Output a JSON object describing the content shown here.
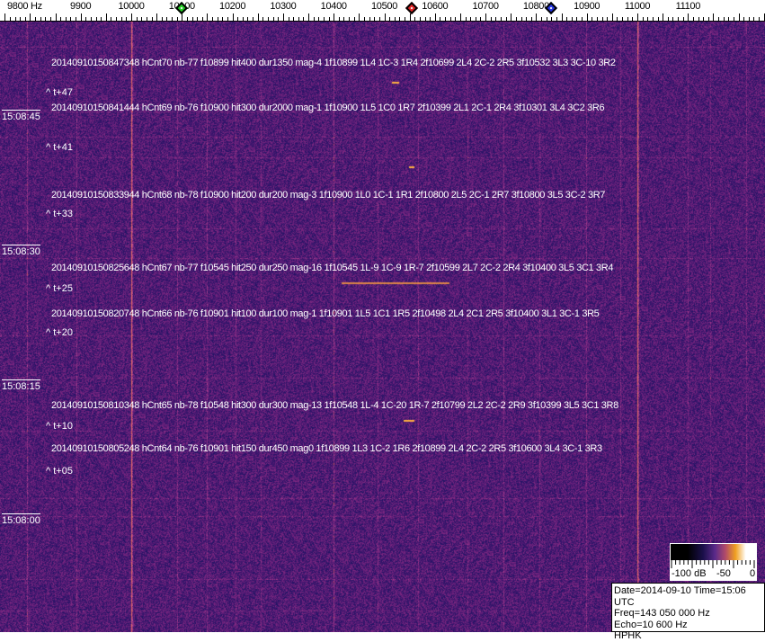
{
  "frequency_axis": {
    "labels": [
      {
        "freq": 9800,
        "text": "9800 Hz"
      },
      {
        "freq": 9900,
        "text": "9900"
      },
      {
        "freq": 10000,
        "text": "10000"
      },
      {
        "freq": 10100,
        "text": "10100"
      },
      {
        "freq": 10200,
        "text": "10200"
      },
      {
        "freq": 10300,
        "text": "10300"
      },
      {
        "freq": 10400,
        "text": "10400"
      },
      {
        "freq": 10500,
        "text": "10500"
      },
      {
        "freq": 10600,
        "text": "10600"
      },
      {
        "freq": 10700,
        "text": "10700"
      },
      {
        "freq": 10800,
        "text": "10800"
      },
      {
        "freq": 10900,
        "text": "10900"
      },
      {
        "freq": 11000,
        "text": "11000"
      },
      {
        "freq": 11100,
        "text": "11100"
      }
    ],
    "markers": [
      {
        "name": "green-marker",
        "freq": 10100,
        "color": "#22cc22"
      },
      {
        "name": "red-marker",
        "freq": 10555,
        "color": "#dd2222"
      },
      {
        "name": "blue-marker",
        "freq": 10830,
        "color": "#2233dd"
      }
    ]
  },
  "detections": [
    "20140910150847348 hCnt70 nb-77 f10899 hit400 dur1350 mag-4 1f10899 1L4 1C-3 1R4 2f10699 2L4 2C-2 2R5 3f10532 3L3 3C-10 3R2",
    "20140910150841444 hCnt69 nb-76 f10900 hit300 dur2000 mag-1 1f10900 1L5 1C0 1R7 2f10399 2L1 2C-1 2R4 3f10301 3L4 3C2 3R6",
    "20140910150833944 hCnt68 nb-78 f10900 hit200 dur200 mag-3 1f10900 1L0 1C-1 1R1 2f10800 2L5 2C-1 2R7 3f10800 3L5 3C-2 3R7",
    "20140910150825648 hCnt67 nb-77 f10545 hit250 dur250 mag-16 1f10545 1L-9 1C-9 1R-7 2f10599 2L7 2C-2 2R4 3f10400 3L5 3C1 3R4",
    "20140910150820748 hCnt66 nb-76 f10901 hit100 dur100 mag-1 1f10901 1L5 1C1 1R5 2f10498 2L4 2C1 2R5 3f10400 3L1 3C-1 3R5",
    "20140910150810348 hCnt65 nb-78 f10548 hit300 dur300 mag-13 1f10548 1L-4 1C-20 1R-7 2f10799 2L2 2C-2 2R9 3f10399 3L5 3C1 3R8",
    "20140910150805248 hCnt64 nb-76 f10901 hit150 dur450 mag0 1f10899 1L3 1C-2 1R6 2f10899 2L4 2C-2 2R5 3f10600 3L4 3C-1 3R3"
  ],
  "time_offsets": [
    "^ t+47",
    "^ t+41",
    "^ t+33",
    "^ t+25",
    "^ t+20",
    "^ t+10",
    "^ t+05"
  ],
  "time_labels": [
    "15:08:45",
    "15:08:30",
    "15:08:15",
    "15:08:00"
  ],
  "colorbar": {
    "labels": [
      "-100 dB",
      "-50",
      "0"
    ]
  },
  "info": {
    "date_time": "Date=2014-09-10 Time=15:06 UTC",
    "freq": "Freq=143 050 000 Hz",
    "echo": "Echo=10 600 Hz",
    "station": "HPHK"
  },
  "colors": {
    "background": "#2b2080",
    "line": "#c06040",
    "echo": "#ffb040"
  }
}
